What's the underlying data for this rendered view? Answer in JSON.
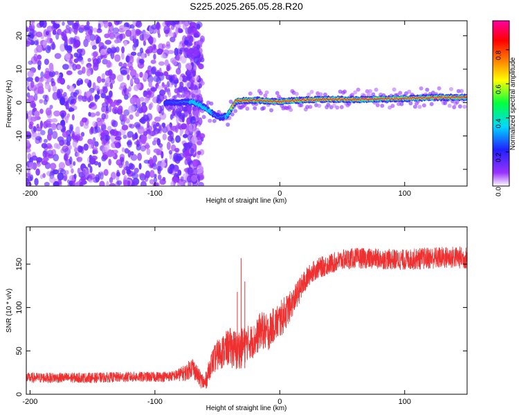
{
  "title": "S225.2025.265.05.28.R20",
  "chart_data": [
    {
      "type": "heatmap",
      "panel": "spectrogram",
      "xlabel": "Height of straight line (km)",
      "ylabel": "Frequency (Hz)",
      "xlim": [
        -203,
        150
      ],
      "ylim": [
        -25,
        24.5
      ],
      "xticks": [
        -200,
        -100,
        0,
        100
      ],
      "xtick_labels": [
        "-200",
        "-100",
        "0",
        "100"
      ],
      "yticks": [
        -20,
        -10,
        0,
        10,
        20
      ],
      "ytick_labels": [
        "-20",
        "-10",
        "0",
        "10",
        "20"
      ],
      "colorbar": {
        "label": "Normalized spectral amplitude",
        "range": [
          0,
          0.97
        ],
        "ticks": [
          0.0,
          0.2,
          0.4,
          0.6,
          0.8
        ],
        "tick_labels": [
          "0.0",
          "0.2",
          "0.4",
          "0.6",
          "0.8"
        ],
        "colors": [
          "#ffffff",
          "#9a33ff",
          "#2020ff",
          "#00d8ff",
          "#00ff40",
          "#ffff00",
          "#ff8000",
          "#ff0000",
          "#ff00a0"
        ]
      },
      "signal_track": {
        "x": [
          -90,
          -70,
          -60,
          -55,
          -48,
          -42,
          -35,
          -20,
          0,
          20,
          40,
          60,
          80,
          100,
          120,
          150
        ],
        "freq_hz": [
          0,
          0.2,
          -1.5,
          -3,
          -4.5,
          -4,
          0.5,
          0.7,
          0.3,
          0.8,
          1.0,
          0.9,
          1.1,
          1.2,
          1.5,
          1.6
        ],
        "amplitude": [
          0.25,
          0.35,
          0.4,
          0.35,
          0.3,
          0.35,
          0.9,
          0.92,
          0.93,
          0.94,
          0.95,
          0.94,
          0.95,
          0.96,
          0.95,
          0.96
        ]
      },
      "noise_region_x": [
        -203,
        -62
      ],
      "noise_amplitude": 0.15
    },
    {
      "type": "line",
      "panel": "snr",
      "xlabel": "Height of straight line (km)",
      "ylabel": "SNR (10 * v/v)",
      "xlim": [
        -203,
        150
      ],
      "ylim": [
        0,
        193
      ],
      "xticks": [
        -200,
        -100,
        0,
        100
      ],
      "xtick_labels": [
        "-200",
        "-100",
        "0",
        "100"
      ],
      "yticks": [
        0,
        50,
        100,
        150
      ],
      "ytick_labels": [
        "0",
        "50",
        "100",
        "150"
      ],
      "color": "#ee3030",
      "series": [
        {
          "name": "SNR",
          "x": [
            -203,
            -180,
            -150,
            -120,
            -100,
            -85,
            -75,
            -70,
            -65,
            -60,
            -55,
            -50,
            -45,
            -40,
            -35,
            -30,
            -25,
            -20,
            -15,
            -10,
            -5,
            0,
            5,
            10,
            15,
            20,
            25,
            30,
            40,
            50,
            60,
            80,
            100,
            120,
            140,
            150
          ],
          "y": [
            19,
            19,
            19,
            20,
            20,
            21,
            25,
            32,
            20,
            12,
            35,
            45,
            50,
            55,
            50,
            55,
            60,
            62,
            75,
            70,
            80,
            85,
            95,
            105,
            118,
            130,
            140,
            145,
            150,
            155,
            157,
            156,
            155,
            157,
            158,
            157
          ],
          "noise": [
            6,
            6,
            6,
            6,
            6,
            6,
            10,
            12,
            10,
            10,
            14,
            18,
            20,
            22,
            25,
            22,
            20,
            20,
            22,
            22,
            20,
            22,
            20,
            16,
            15,
            14,
            12,
            12,
            12,
            12,
            12,
            12,
            12,
            13,
            13,
            13
          ]
        }
      ],
      "spikes": [
        {
          "x": -31,
          "y": 157
        },
        {
          "x": -28,
          "y": 130
        },
        {
          "x": -34,
          "y": 118
        }
      ]
    }
  ]
}
